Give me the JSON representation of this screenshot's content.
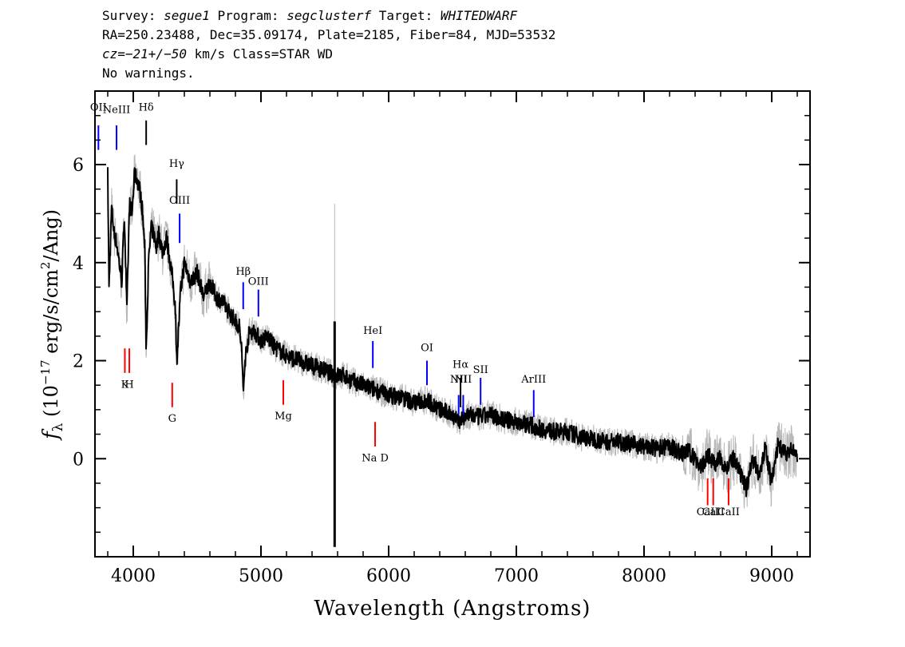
{
  "header": {
    "line1": {
      "survey_label": "Survey: ",
      "survey": "segue1",
      "program_label": " Program: ",
      "program": "segclusterf",
      "target_label": " Target: ",
      "target": "WHITEDWARF"
    },
    "line2": "RA=250.23488, Dec=35.09174, Plate=2185, Fiber=84, MJD=53532",
    "line3": {
      "cz": "cz=−21+/−50",
      "rest": " km/s Class=STAR WD"
    },
    "line4": "No warnings."
  },
  "chart_data": {
    "type": "line",
    "xlabel": "Wavelength (Angstroms)",
    "ylabel_main": "f",
    "ylabel_sub": "λ",
    "ylabel_pre": " (10",
    "ylabel_exp": "−17",
    "ylabel_mid": " erg/s/cm",
    "ylabel_exp2": "2",
    "ylabel_post": "/Ang)",
    "xlim": [
      3700,
      9300
    ],
    "ylim": [
      -2.0,
      7.5
    ],
    "x_ticks": [
      4000,
      5000,
      6000,
      7000,
      8000,
      9000
    ],
    "x_tick_labels": [
      "4000",
      "5000",
      "6000",
      "7000",
      "8000",
      "9000"
    ],
    "y_ticks": [
      0,
      2,
      4,
      6
    ],
    "y_tick_labels": [
      "0",
      "2",
      "4",
      "6"
    ],
    "colors": {
      "spectrum": "#000000",
      "error_band": "#b8b8b8",
      "emission_line": "#0000ff",
      "absorption_line": "#ff0000",
      "sky_line": "#000000"
    },
    "series": [
      {
        "role": "smoothed_flux",
        "x": [
          3800,
          3810,
          3830,
          3850,
          3870,
          3890,
          3910,
          3930,
          3950,
          3970,
          3990,
          4010,
          4030,
          4050,
          4070,
          4090,
          4101,
          4120,
          4140,
          4160,
          4180,
          4200,
          4230,
          4260,
          4290,
          4310,
          4330,
          4340,
          4350,
          4370,
          4400,
          4450,
          4500,
          4550,
          4600,
          4650,
          4700,
          4750,
          4800,
          4830,
          4850,
          4861,
          4875,
          4890,
          4910,
          4950,
          5000,
          5050,
          5100,
          5150,
          5200,
          5300,
          5400,
          5500,
          5580,
          5650,
          5700,
          5800,
          5900,
          6000,
          6100,
          6200,
          6300,
          6400,
          6500,
          6563,
          6600,
          6700,
          6800,
          6900,
          7000,
          7100,
          7200,
          7300,
          7400,
          7500,
          7600,
          7700,
          7800,
          7900,
          8000,
          8100,
          8200,
          8300,
          8350,
          8400,
          8450,
          8500,
          8550,
          8600,
          8650,
          8700,
          8750,
          8800,
          8850,
          8900,
          8950,
          9000,
          9050,
          9100,
          9150,
          9200
        ],
        "y": [
          5.8,
          3.5,
          5.1,
          4.6,
          4.4,
          4.0,
          3.6,
          5.0,
          3.0,
          5.2,
          5.0,
          5.8,
          5.7,
          5.5,
          5.1,
          4.3,
          2.2,
          4.0,
          4.7,
          4.6,
          4.3,
          4.6,
          4.2,
          4.5,
          4.0,
          3.6,
          3.1,
          2.0,
          2.4,
          3.4,
          4.0,
          3.6,
          3.8,
          3.3,
          3.6,
          3.3,
          3.2,
          3.0,
          2.8,
          2.7,
          2.2,
          1.3,
          2.0,
          2.3,
          2.6,
          2.6,
          2.4,
          2.5,
          2.3,
          2.2,
          2.1,
          2.0,
          1.9,
          1.8,
          1.7,
          1.7,
          1.6,
          1.5,
          1.4,
          1.3,
          1.25,
          1.15,
          1.2,
          1.0,
          0.9,
          0.75,
          0.9,
          0.85,
          0.9,
          0.8,
          0.75,
          0.7,
          0.6,
          0.55,
          0.55,
          0.45,
          0.4,
          0.35,
          0.35,
          0.3,
          0.25,
          0.2,
          0.25,
          0.1,
          0.15,
          0.0,
          -0.2,
          0.1,
          -0.1,
          0.0,
          -0.2,
          0.0,
          -0.3,
          -0.6,
          0.0,
          -0.3,
          0.2,
          -0.5,
          0.3,
          0.1,
          0.15,
          0.1
        ]
      },
      {
        "role": "sky_spike",
        "x": [
          5577,
          5577
        ],
        "y": [
          2.8,
          -1.8
        ]
      }
    ],
    "line_markers": [
      {
        "label": "OII",
        "x": 3727,
        "kind": "emission",
        "label_y": 7.1,
        "y_top": 6.8,
        "y_bottom": 6.3
      },
      {
        "label": "NeIII",
        "x": 3869,
        "kind": "emission",
        "label_y": 7.05,
        "y_top": 6.8,
        "y_bottom": 6.3
      },
      {
        "label": "Hδ",
        "x": 4101,
        "kind": "sky",
        "label_y": 7.1,
        "y_top": 6.9,
        "y_bottom": 6.4
      },
      {
        "label": "Hγ",
        "x": 4340,
        "kind": "sky",
        "label_y": 5.95,
        "y_top": 5.7,
        "y_bottom": 5.2
      },
      {
        "label": "OIII",
        "x": 4363,
        "kind": "emission",
        "label_y": 5.2,
        "y_top": 5.0,
        "y_bottom": 4.4
      },
      {
        "label": "Hβ",
        "x": 4861,
        "kind": "emission",
        "label_y": 3.75,
        "y_top": 3.6,
        "y_bottom": 3.05
      },
      {
        "label": "OIII",
        "x": 4980,
        "kind": "emission",
        "label_y": 3.55,
        "y_top": 3.45,
        "y_bottom": 2.9
      },
      {
        "label": "HeI",
        "x": 5876,
        "kind": "emission",
        "label_y": 2.55,
        "y_top": 2.4,
        "y_bottom": 1.85
      },
      {
        "label": "OI",
        "x": 6300,
        "kind": "emission",
        "label_y": 2.2,
        "y_top": 2.0,
        "y_bottom": 1.5
      },
      {
        "label": "NII",
        "x": 6548,
        "kind": "emission",
        "label_y": 1.55,
        "y_top": 1.3,
        "y_bottom": 0.9
      },
      {
        "label": "Hα",
        "x": 6563,
        "kind": "sky",
        "label_y": 1.85,
        "y_top": 1.65,
        "y_bottom": 1.05
      },
      {
        "label": "NII",
        "x": 6584,
        "kind": "emission",
        "label_y": 1.55,
        "y_top": 1.3,
        "y_bottom": 0.9
      },
      {
        "label": "SII",
        "x": 6720,
        "kind": "emission",
        "label_y": 1.75,
        "y_top": 1.65,
        "y_bottom": 1.1
      },
      {
        "label": "ArIII",
        "x": 7136,
        "kind": "emission",
        "label_y": 1.55,
        "y_top": 1.4,
        "y_bottom": 0.85
      },
      {
        "label": "K",
        "x": 3934,
        "kind": "absorption",
        "label_y": 1.45,
        "y_top": 2.25,
        "y_bottom": 1.75
      },
      {
        "label": "H",
        "x": 3969,
        "kind": "absorption",
        "label_y": 1.45,
        "y_top": 2.25,
        "y_bottom": 1.75
      },
      {
        "label": "G",
        "x": 4305,
        "kind": "absorption",
        "label_y": 0.75,
        "y_top": 1.55,
        "y_bottom": 1.05
      },
      {
        "label": "Mg",
        "x": 5175,
        "kind": "absorption",
        "label_y": 0.8,
        "y_top": 1.6,
        "y_bottom": 1.1
      },
      {
        "label": "Na D",
        "x": 5894,
        "kind": "absorption",
        "label_y": -0.05,
        "y_top": 0.75,
        "y_bottom": 0.25
      },
      {
        "label": "CaII",
        "x": 8498,
        "kind": "absorption",
        "label_y": -1.15,
        "y_top": -0.4,
        "y_bottom": -0.95
      },
      {
        "label": "CaII",
        "x": 8542,
        "kind": "absorption",
        "label_y": -1.15,
        "y_top": -0.4,
        "y_bottom": -0.95
      },
      {
        "label": "CaII",
        "x": 8662,
        "kind": "absorption",
        "label_y": -1.15,
        "y_top": -0.4,
        "y_bottom": -0.95
      }
    ]
  }
}
